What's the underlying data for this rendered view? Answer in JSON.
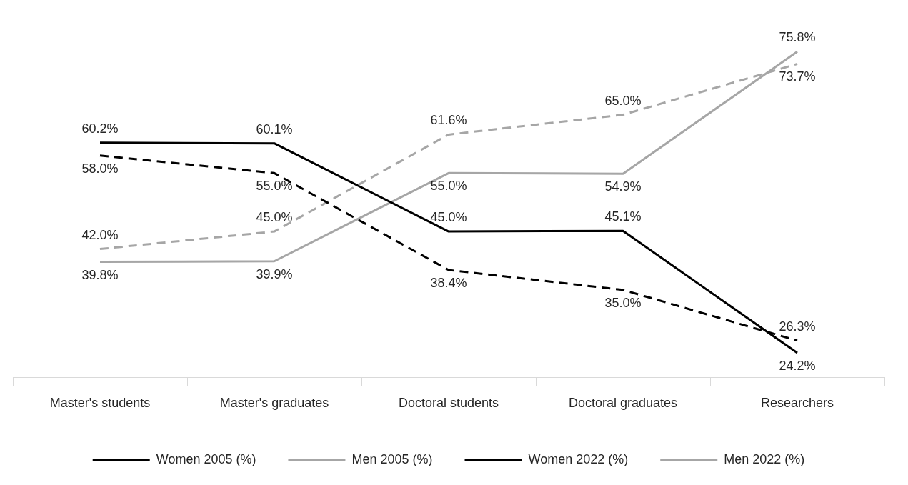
{
  "chart_data": {
    "type": "line",
    "categories": [
      "Master's students",
      "Master's graduates",
      "Doctoral students",
      "Doctoral graduates",
      "Researchers"
    ],
    "series": [
      {
        "name": "Women 2005 (%)",
        "color": "#000000",
        "line_style": "dashed",
        "values": [
          58.0,
          55.0,
          38.4,
          35.0,
          26.3
        ],
        "value_labels": [
          "58.0%",
          "55.0%",
          "38.4%",
          "35.0%",
          "26.3%"
        ]
      },
      {
        "name": "Men 2005 (%)",
        "color": "#a6a6a6",
        "line_style": "dashed",
        "values": [
          42.0,
          45.0,
          61.6,
          65.0,
          73.7
        ],
        "value_labels": [
          "42.0%",
          "45.0%",
          "61.6%",
          "65.0%",
          "73.7%"
        ]
      },
      {
        "name": "Women 2022 (%)",
        "color": "#000000",
        "line_style": "solid",
        "values": [
          60.2,
          60.1,
          45.0,
          45.1,
          24.2
        ],
        "value_labels": [
          "60.2%",
          "60.1%",
          "45.0%",
          "45.1%",
          "24.2%"
        ]
      },
      {
        "name": "Men 2022 (%)",
        "color": "#a6a6a6",
        "line_style": "solid",
        "values": [
          39.8,
          39.9,
          55.0,
          54.9,
          75.8
        ],
        "value_labels": [
          "39.8%",
          "39.9%",
          "55.0%",
          "54.9%",
          "75.8%"
        ]
      }
    ],
    "legend": "bottom",
    "grid": false,
    "marker": "none"
  }
}
